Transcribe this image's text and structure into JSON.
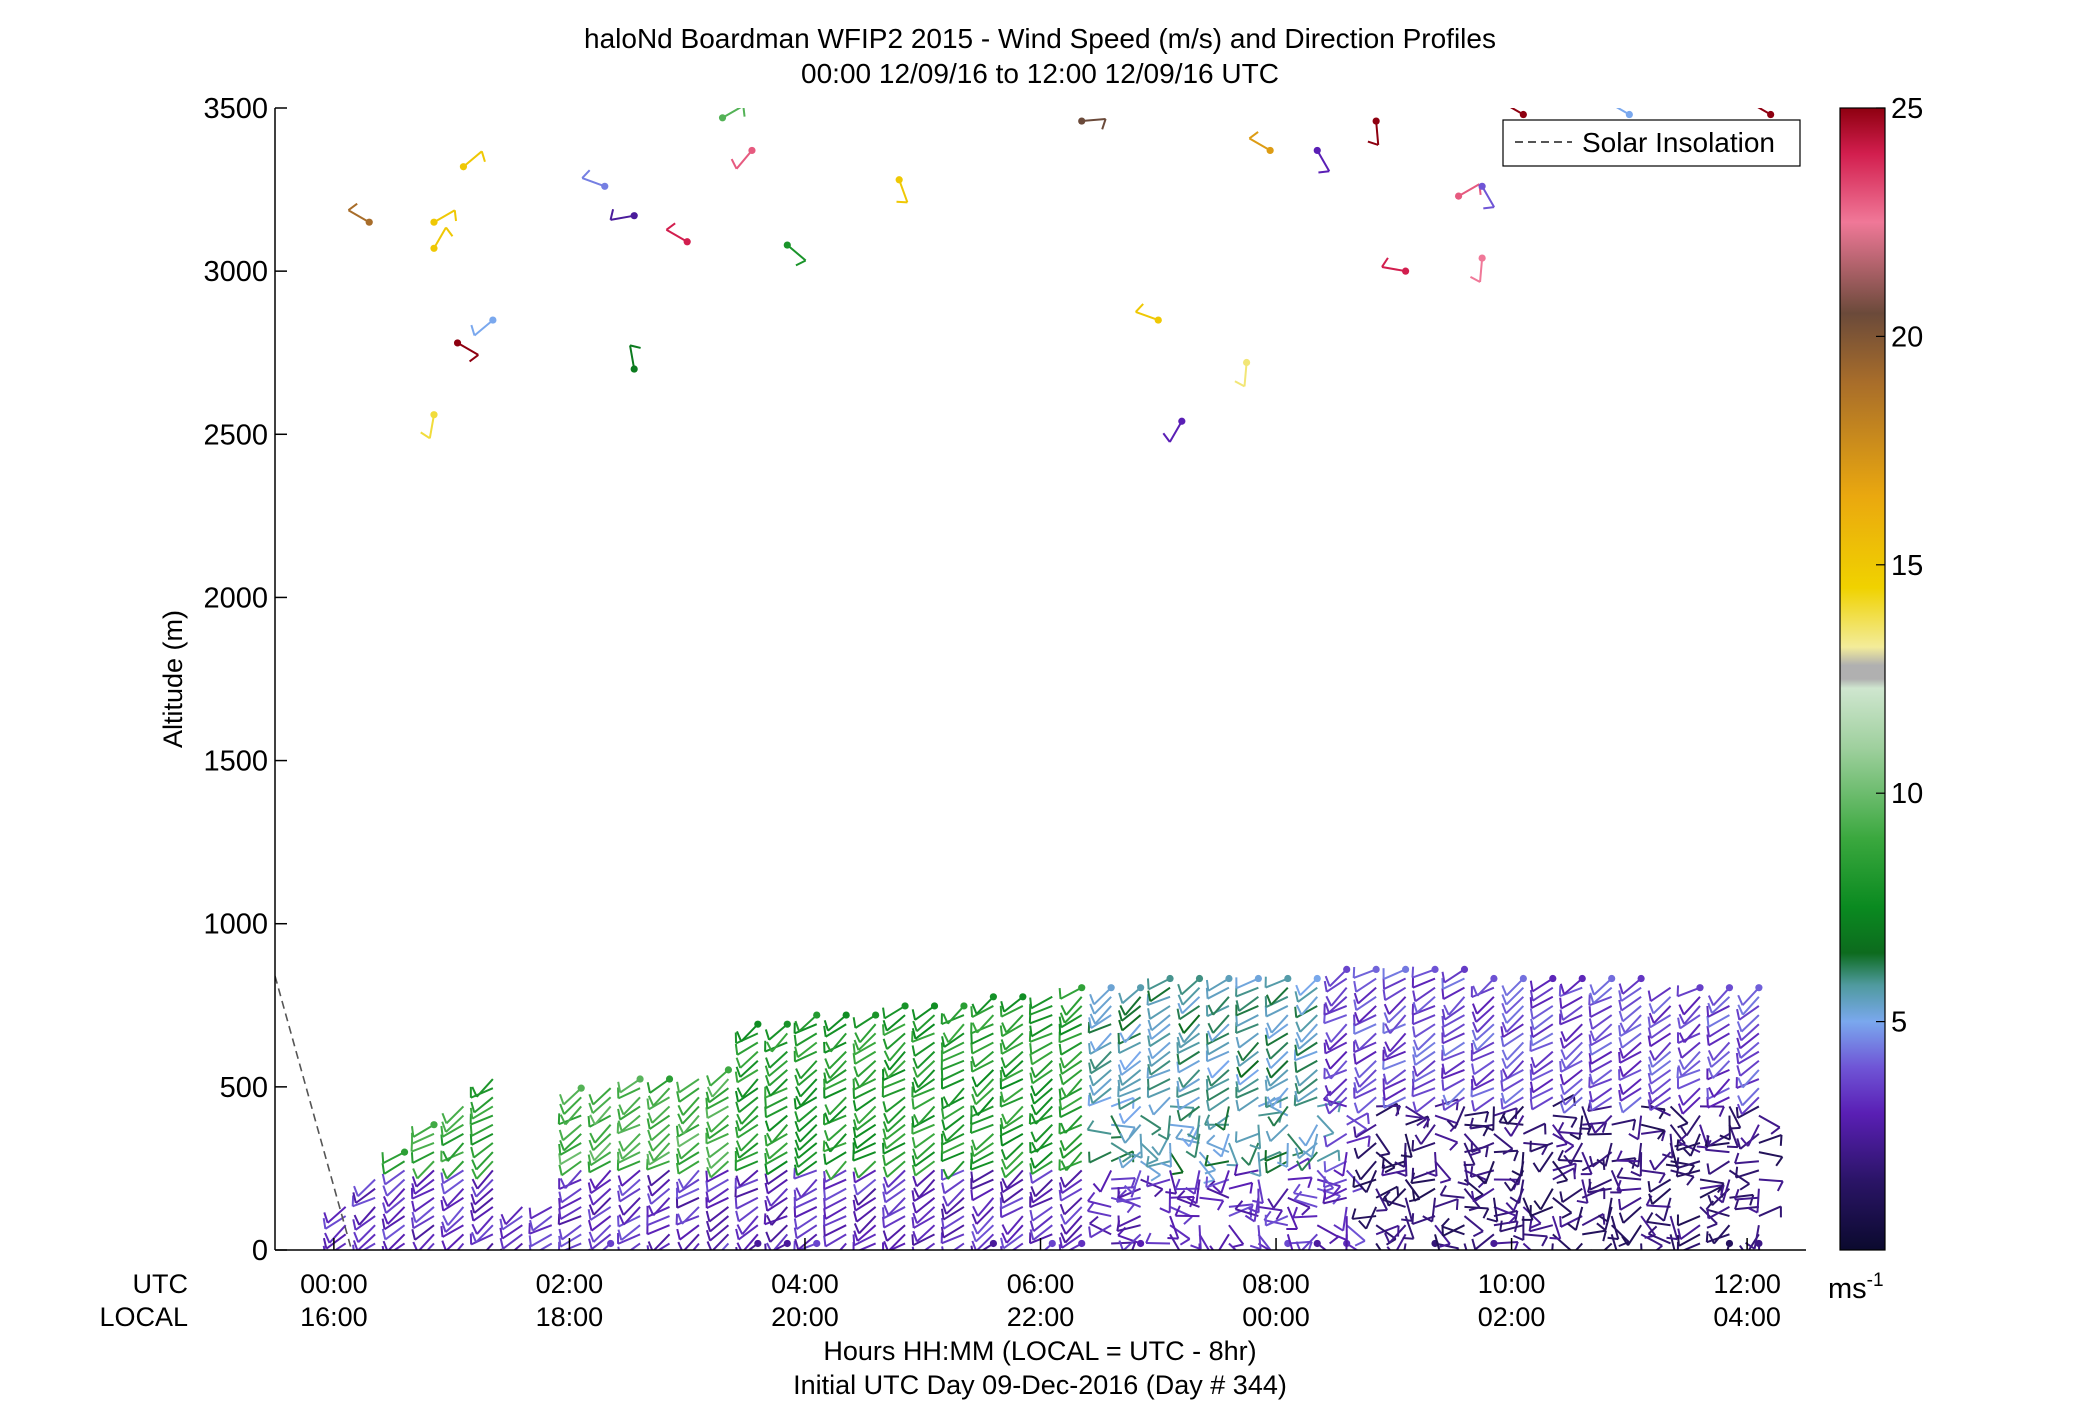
{
  "chart_data": {
    "type": "wind-barb-profile",
    "title": "haloNd Boardman WFIP2 2015 - Wind Speed (m/s) and Direction Profiles",
    "subtitle": "00:00 12/09/16 to 12:00 12/09/16  UTC",
    "ylabel": "Altitude (m)",
    "ylim": [
      0,
      3500
    ],
    "yticks": [
      "0",
      "500",
      "1000",
      "1500",
      "2000",
      "2500",
      "3000",
      "3500"
    ],
    "xlim_hours": [
      -0.5,
      12.5
    ],
    "utc_row_label": "UTC",
    "local_row_label": "LOCAL",
    "utc_ticks": [
      "00:00",
      "02:00",
      "04:00",
      "06:00",
      "08:00",
      "10:00",
      "12:00"
    ],
    "local_ticks": [
      "16:00",
      "18:00",
      "20:00",
      "22:00",
      "00:00",
      "02:00",
      "04:00"
    ],
    "tick_hours": [
      0,
      2,
      4,
      6,
      8,
      10,
      12
    ],
    "xlabel_line1": "Hours HH:MM  (LOCAL = UTC - 8hr)",
    "xlabel_line2": "Initial UTC Day 09-Dec-2016 (Day # 344)",
    "legend": {
      "label": "Solar Insolation",
      "placement": "top-right",
      "style": "dashed",
      "color": "#555555"
    },
    "solar_insolation": {
      "x_hours": [
        -0.5,
        0.15
      ],
      "altitude_m": [
        840,
        0
      ]
    },
    "colorbar": {
      "ticks": [
        "5",
        "10",
        "15",
        "20",
        "25"
      ],
      "unit": "ms",
      "unit_exponent": "-1",
      "min": 0,
      "max": 25,
      "stops": [
        {
          "v": 0,
          "c": "#0b0a2e"
        },
        {
          "v": 1.5,
          "c": "#2a1466"
        },
        {
          "v": 3,
          "c": "#5a1fb5"
        },
        {
          "v": 4,
          "c": "#6f55d6"
        },
        {
          "v": 5,
          "c": "#7aa8ee"
        },
        {
          "v": 5.8,
          "c": "#4f9a9e"
        },
        {
          "v": 6.5,
          "c": "#0d6b1e"
        },
        {
          "v": 7.5,
          "c": "#0a8a20"
        },
        {
          "v": 9,
          "c": "#3aa83e"
        },
        {
          "v": 11,
          "c": "#9fd09e"
        },
        {
          "v": 12.3,
          "c": "#cfe6cf"
        },
        {
          "v": 12.5,
          "c": "#b0b0b0"
        },
        {
          "v": 12.8,
          "c": "#b0b0b0"
        },
        {
          "v": 13.2,
          "c": "#f3ec9a"
        },
        {
          "v": 14.5,
          "c": "#f0d200"
        },
        {
          "v": 16.5,
          "c": "#eaa80f"
        },
        {
          "v": 19,
          "c": "#a86d2a"
        },
        {
          "v": 20.5,
          "c": "#6b4a3a"
        },
        {
          "v": 22.5,
          "c": "#f07898"
        },
        {
          "v": 24,
          "c": "#d21e4e"
        },
        {
          "v": 25,
          "c": "#8e0010"
        }
      ]
    },
    "upper_obs": [
      {
        "t": 0.3,
        "z": 3150,
        "s": 19,
        "d": 300
      },
      {
        "t": 0.85,
        "z": 3150,
        "s": 15,
        "d": 60
      },
      {
        "t": 0.85,
        "z": 3070,
        "s": 15,
        "d": 30
      },
      {
        "t": 1.1,
        "z": 3320,
        "s": 15,
        "d": 50
      },
      {
        "t": 0.85,
        "z": 2560,
        "s": 14,
        "d": 190
      },
      {
        "t": 1.05,
        "z": 2780,
        "s": 25,
        "d": 120
      },
      {
        "t": 1.35,
        "z": 2850,
        "s": 5,
        "d": 230
      },
      {
        "t": 2.3,
        "z": 3260,
        "s": 4.5,
        "d": 290
      },
      {
        "t": 2.55,
        "z": 3170,
        "s": 2.5,
        "d": 260
      },
      {
        "t": 2.55,
        "z": 2700,
        "s": 7,
        "d": 350
      },
      {
        "t": 3.0,
        "z": 3090,
        "s": 24,
        "d": 300
      },
      {
        "t": 3.3,
        "z": 3470,
        "s": 9.5,
        "d": 60
      },
      {
        "t": 3.55,
        "z": 3370,
        "s": 23,
        "d": 220
      },
      {
        "t": 3.85,
        "z": 3080,
        "s": 8,
        "d": 130
      },
      {
        "t": 4.8,
        "z": 3280,
        "s": 15,
        "d": 160
      },
      {
        "t": 6.35,
        "z": 3460,
        "s": 20.5,
        "d": 85
      },
      {
        "t": 7.0,
        "z": 2850,
        "s": 15,
        "d": 290
      },
      {
        "t": 7.2,
        "z": 2540,
        "s": 3,
        "d": 210
      },
      {
        "t": 7.75,
        "z": 2720,
        "s": 13.5,
        "d": 185
      },
      {
        "t": 7.95,
        "z": 3370,
        "s": 17,
        "d": 300
      },
      {
        "t": 8.35,
        "z": 3370,
        "s": 3,
        "d": 150
      },
      {
        "t": 8.85,
        "z": 3460,
        "s": 25,
        "d": 175
      },
      {
        "t": 9.1,
        "z": 3000,
        "s": 24,
        "d": 280
      },
      {
        "t": 9.55,
        "z": 3230,
        "s": 23,
        "d": 60
      },
      {
        "t": 9.75,
        "z": 3260,
        "s": 4,
        "d": 150
      },
      {
        "t": 9.75,
        "z": 3040,
        "s": 22.5,
        "d": 185
      },
      {
        "t": 10.1,
        "z": 3480,
        "s": 25,
        "d": 300
      },
      {
        "t": 11.0,
        "z": 3480,
        "s": 5,
        "d": 300
      },
      {
        "t": 12.2,
        "z": 3480,
        "s": 25,
        "d": 300
      }
    ]
  }
}
